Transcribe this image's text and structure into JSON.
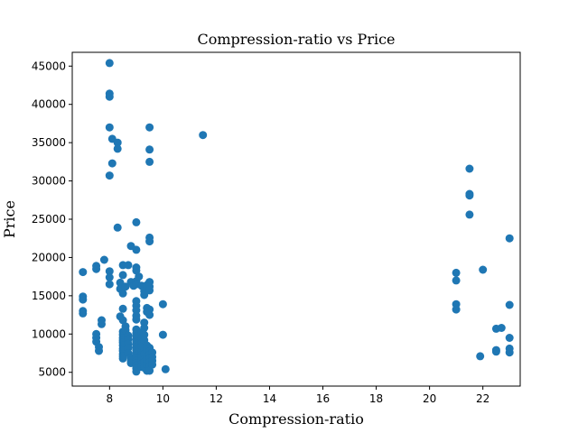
{
  "chart_data": {
    "type": "scatter",
    "title": "Compression-ratio vs Price",
    "xlabel": "Compression-ratio",
    "ylabel": "Price",
    "xlim": [
      6.6,
      23.4
    ],
    "ylim": [
      3200,
      46800
    ],
    "xticks": [
      8,
      10,
      12,
      14,
      16,
      18,
      20,
      22
    ],
    "yticks": [
      5000,
      10000,
      15000,
      20000,
      25000,
      30000,
      35000,
      40000,
      45000
    ],
    "grid": false,
    "marker_color": "#1f77b4",
    "points": [
      [
        8.0,
        45400
      ],
      [
        8.0,
        41400
      ],
      [
        8.0,
        41000
      ],
      [
        8.0,
        37000
      ],
      [
        8.1,
        35500
      ],
      [
        8.3,
        35000
      ],
      [
        8.3,
        34200
      ],
      [
        8.1,
        32300
      ],
      [
        8.0,
        30700
      ],
      [
        9.5,
        37000
      ],
      [
        9.5,
        34100
      ],
      [
        9.5,
        32500
      ],
      [
        11.5,
        36000
      ],
      [
        8.3,
        23900
      ],
      [
        9.0,
        24600
      ],
      [
        9.5,
        22600
      ],
      [
        9.5,
        22100
      ],
      [
        7.0,
        18100
      ],
      [
        7.0,
        14900
      ],
      [
        7.0,
        14500
      ],
      [
        7.0,
        13000
      ],
      [
        7.0,
        12700
      ],
      [
        7.5,
        18900
      ],
      [
        7.5,
        18500
      ],
      [
        7.5,
        10000
      ],
      [
        7.5,
        9500
      ],
      [
        7.5,
        9000
      ],
      [
        7.6,
        8300
      ],
      [
        7.6,
        7800
      ],
      [
        7.7,
        11800
      ],
      [
        7.7,
        11300
      ],
      [
        7.8,
        19700
      ],
      [
        8.0,
        18200
      ],
      [
        8.0,
        17400
      ],
      [
        8.0,
        16500
      ],
      [
        8.4,
        16700
      ],
      [
        8.4,
        15900
      ],
      [
        8.5,
        19000
      ],
      [
        8.5,
        17700
      ],
      [
        8.5,
        15300
      ],
      [
        8.6,
        16200
      ],
      [
        8.7,
        19000
      ],
      [
        8.8,
        21500
      ],
      [
        8.8,
        16800
      ],
      [
        8.9,
        16300
      ],
      [
        9.0,
        21000
      ],
      [
        9.0,
        18700
      ],
      [
        9.0,
        18300
      ],
      [
        9.0,
        16900
      ],
      [
        9.0,
        16500
      ],
      [
        9.1,
        17500
      ],
      [
        9.2,
        16300
      ],
      [
        9.3,
        15600
      ],
      [
        9.3,
        15100
      ],
      [
        9.4,
        16400
      ],
      [
        9.5,
        16800
      ],
      [
        9.5,
        16200
      ],
      [
        9.5,
        15700
      ],
      [
        8.4,
        12300
      ],
      [
        8.5,
        13300
      ],
      [
        8.5,
        11800
      ],
      [
        8.6,
        11000
      ],
      [
        8.5,
        10300
      ],
      [
        8.5,
        9900
      ],
      [
        8.5,
        9500
      ],
      [
        8.5,
        9200
      ],
      [
        8.5,
        8900
      ],
      [
        8.5,
        8500
      ],
      [
        8.5,
        8100
      ],
      [
        8.5,
        7800
      ],
      [
        8.5,
        7400
      ],
      [
        8.5,
        7100
      ],
      [
        8.5,
        6800
      ],
      [
        8.6,
        10500
      ],
      [
        8.7,
        9800
      ],
      [
        8.7,
        9300
      ],
      [
        8.7,
        8700
      ],
      [
        8.7,
        8200
      ],
      [
        8.7,
        7500
      ],
      [
        8.8,
        6900
      ],
      [
        8.8,
        6500
      ],
      [
        8.8,
        6200
      ],
      [
        9.0,
        14300
      ],
      [
        9.0,
        13700
      ],
      [
        9.0,
        13100
      ],
      [
        9.0,
        12400
      ],
      [
        9.0,
        11900
      ],
      [
        9.0,
        10600
      ],
      [
        9.0,
        10100
      ],
      [
        9.0,
        9700
      ],
      [
        9.0,
        9300
      ],
      [
        9.0,
        9000
      ],
      [
        9.0,
        8600
      ],
      [
        9.0,
        8300
      ],
      [
        9.0,
        7900
      ],
      [
        9.0,
        7500
      ],
      [
        9.0,
        7200
      ],
      [
        9.0,
        6900
      ],
      [
        9.0,
        6500
      ],
      [
        9.0,
        6200
      ],
      [
        9.0,
        5900
      ],
      [
        9.0,
        5500
      ],
      [
        9.0,
        5100
      ],
      [
        9.1,
        8000
      ],
      [
        9.2,
        10200
      ],
      [
        9.2,
        9500
      ],
      [
        9.2,
        8800
      ],
      [
        9.2,
        8400
      ],
      [
        9.2,
        7700
      ],
      [
        9.2,
        7300
      ],
      [
        9.2,
        6900
      ],
      [
        9.2,
        6500
      ],
      [
        9.2,
        6100
      ],
      [
        9.2,
        5700
      ],
      [
        9.3,
        11500
      ],
      [
        9.3,
        10800
      ],
      [
        9.3,
        9900
      ],
      [
        9.3,
        9200
      ],
      [
        9.3,
        8000
      ],
      [
        9.3,
        7400
      ],
      [
        9.3,
        6700
      ],
      [
        9.3,
        6300
      ],
      [
        9.3,
        5600
      ],
      [
        9.4,
        13400
      ],
      [
        9.4,
        12900
      ],
      [
        9.4,
        8500
      ],
      [
        9.4,
        7900
      ],
      [
        9.4,
        7000
      ],
      [
        9.4,
        6400
      ],
      [
        9.4,
        5900
      ],
      [
        9.4,
        5200
      ],
      [
        9.5,
        13200
      ],
      [
        9.5,
        12500
      ],
      [
        9.5,
        8200
      ],
      [
        9.5,
        7700
      ],
      [
        9.5,
        7300
      ],
      [
        9.5,
        6800
      ],
      [
        9.5,
        6300
      ],
      [
        9.5,
        5800
      ],
      [
        9.5,
        5200
      ],
      [
        9.6,
        7600
      ],
      [
        9.6,
        7000
      ],
      [
        9.6,
        6500
      ],
      [
        9.6,
        6000
      ],
      [
        10.0,
        13900
      ],
      [
        10.0,
        9900
      ],
      [
        10.1,
        5400
      ],
      [
        21.0,
        18000
      ],
      [
        21.0,
        17000
      ],
      [
        21.0,
        13900
      ],
      [
        21.0,
        13200
      ],
      [
        21.5,
        31600
      ],
      [
        21.5,
        28300
      ],
      [
        21.5,
        28100
      ],
      [
        21.5,
        25600
      ],
      [
        21.9,
        7100
      ],
      [
        22.0,
        18400
      ],
      [
        22.5,
        10700
      ],
      [
        22.5,
        7900
      ],
      [
        22.5,
        7700
      ],
      [
        22.7,
        10800
      ],
      [
        23.0,
        22500
      ],
      [
        23.0,
        13800
      ],
      [
        23.0,
        9500
      ],
      [
        23.0,
        8100
      ],
      [
        23.0,
        7600
      ]
    ]
  }
}
